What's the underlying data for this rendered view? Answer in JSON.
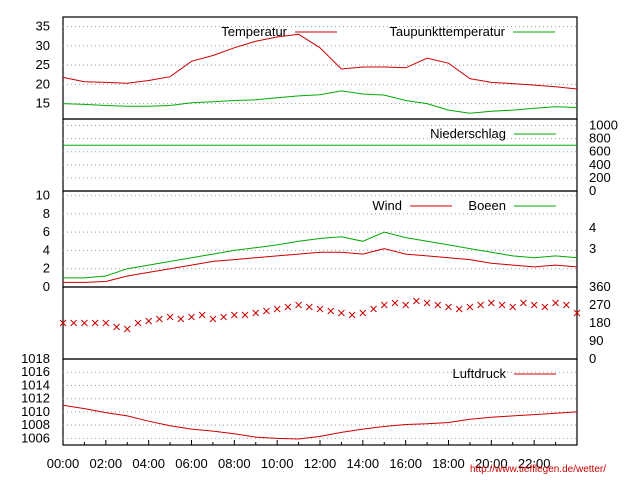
{
  "credit": "http://www.tiefflegen.de/wetter/",
  "x_axis": {
    "ticks": [
      "00:00",
      "02:00",
      "04:00",
      "06:00",
      "08:00",
      "10:00",
      "12:00",
      "14:00",
      "16:00",
      "18:00",
      "20:00",
      "22:00"
    ]
  },
  "chart_data": [
    {
      "type": "line",
      "panel": "temperature",
      "yticks": [
        15,
        20,
        25,
        30,
        35
      ],
      "ylim": [
        11,
        37.5
      ],
      "series": [
        {
          "name": "Temperatur",
          "color": "#cc0000",
          "x": [
            0,
            1,
            2,
            3,
            4,
            5,
            6,
            7,
            8,
            9,
            10,
            11,
            12,
            13,
            14,
            15,
            16,
            17,
            18,
            19,
            20,
            21,
            22,
            23,
            24
          ],
          "values": [
            21.8,
            20.7,
            20.5,
            20.3,
            21,
            22,
            26,
            27.5,
            29.5,
            31.2,
            32.3,
            33,
            29.5,
            24,
            24.5,
            24.5,
            24.3,
            26.8,
            25.5,
            21.5,
            20.5,
            20.2,
            19.8,
            19.4,
            18.8
          ]
        },
        {
          "name": "Taupunkttemperatur",
          "color": "#00aa00",
          "x": [
            0,
            1,
            2,
            3,
            4,
            5,
            6,
            7,
            8,
            9,
            10,
            11,
            12,
            13,
            14,
            15,
            16,
            17,
            18,
            19,
            20,
            21,
            22,
            23,
            24
          ],
          "values": [
            15,
            14.8,
            14.5,
            14.3,
            14.3,
            14.5,
            15.2,
            15.5,
            15.8,
            16,
            16.5,
            17,
            17.3,
            18.3,
            17.5,
            17.2,
            15.8,
            15,
            13.3,
            12.5,
            13,
            13.3,
            13.8,
            14.2,
            14
          ]
        }
      ]
    },
    {
      "type": "line",
      "panel": "precipitation",
      "yticks": [
        0,
        200,
        400,
        600,
        800,
        1000
      ],
      "ylim": [
        0,
        1100
      ],
      "series": [
        {
          "name": "Niederschlag",
          "color": "#00aa00",
          "x": [
            0,
            24
          ],
          "values": [
            700,
            700
          ]
        }
      ]
    },
    {
      "type": "line",
      "panel": "wind",
      "yticks": [
        0,
        2,
        4,
        6,
        8,
        10
      ],
      "ylim": [
        0,
        10.5
      ],
      "right_ticks": [
        "3",
        "4"
      ],
      "series": [
        {
          "name": "Wind",
          "color": "#cc0000",
          "x": [
            0,
            1,
            2,
            3,
            4,
            5,
            6,
            7,
            8,
            9,
            10,
            11,
            12,
            13,
            14,
            15,
            16,
            17,
            18,
            19,
            20,
            21,
            22,
            23,
            24
          ],
          "values": [
            0.5,
            0.5,
            0.6,
            1.2,
            1.6,
            2.0,
            2.4,
            2.8,
            3.0,
            3.2,
            3.4,
            3.6,
            3.8,
            3.8,
            3.6,
            4.2,
            3.6,
            3.4,
            3.2,
            3.0,
            2.6,
            2.4,
            2.2,
            2.4,
            2.2
          ]
        },
        {
          "name": "Boeen",
          "color": "#00aa00",
          "x": [
            0,
            1,
            2,
            3,
            4,
            5,
            6,
            7,
            8,
            9,
            10,
            11,
            12,
            13,
            14,
            15,
            16,
            17,
            18,
            19,
            20,
            21,
            22,
            23,
            24
          ],
          "values": [
            1.0,
            1.0,
            1.2,
            2.0,
            2.4,
            2.8,
            3.2,
            3.6,
            4.0,
            4.3,
            4.6,
            5.0,
            5.3,
            5.5,
            5.0,
            6.0,
            5.4,
            5.0,
            4.6,
            4.2,
            3.8,
            3.4,
            3.2,
            3.4,
            3.2
          ]
        }
      ]
    },
    {
      "type": "scatter",
      "panel": "wind_direction",
      "right_ticks": [
        "0",
        "90",
        "180",
        "270",
        "360"
      ],
      "ylim": [
        0,
        360
      ],
      "series": [
        {
          "name": "",
          "color": "#cc0000",
          "marker": "x",
          "x": [
            0,
            0.5,
            1,
            1.5,
            2,
            2.5,
            3,
            3.5,
            4,
            4.5,
            5,
            5.5,
            6,
            6.5,
            7,
            7.5,
            8,
            8.5,
            9,
            9.5,
            10,
            10.5,
            11,
            11.5,
            12,
            12.5,
            13,
            13.5,
            14,
            14.5,
            15,
            15.5,
            16,
            16.5,
            17,
            17.5,
            18,
            18.5,
            19,
            19.5,
            20,
            20.5,
            21,
            21.5,
            22,
            22.5,
            23,
            23.5,
            24
          ],
          "values": [
            180,
            180,
            180,
            180,
            180,
            160,
            150,
            180,
            190,
            200,
            210,
            200,
            210,
            220,
            200,
            210,
            220,
            220,
            230,
            240,
            250,
            260,
            270,
            260,
            250,
            240,
            230,
            220,
            230,
            250,
            270,
            280,
            270,
            290,
            280,
            270,
            260,
            250,
            260,
            270,
            280,
            270,
            260,
            280,
            270,
            260,
            280,
            270,
            230
          ]
        }
      ]
    },
    {
      "type": "line",
      "panel": "pressure",
      "yticks": [
        1006,
        1008,
        1010,
        1012,
        1014,
        1016,
        1018
      ],
      "ylim": [
        1005,
        1018
      ],
      "series": [
        {
          "name": "Luftdruck",
          "color": "#cc0000",
          "x": [
            0,
            1,
            2,
            3,
            4,
            5,
            6,
            7,
            8,
            9,
            10,
            11,
            12,
            13,
            14,
            15,
            16,
            17,
            18,
            19,
            20,
            21,
            22,
            23,
            24
          ],
          "values": [
            1011,
            1010.5,
            1009.9,
            1009.4,
            1008.6,
            1007.9,
            1007.4,
            1007.1,
            1006.7,
            1006.2,
            1006.0,
            1005.9,
            1006.3,
            1006.9,
            1007.4,
            1007.8,
            1008.1,
            1008.2,
            1008.4,
            1008.9,
            1009.2,
            1009.4,
            1009.6,
            1009.8,
            1010.0
          ]
        }
      ]
    }
  ]
}
